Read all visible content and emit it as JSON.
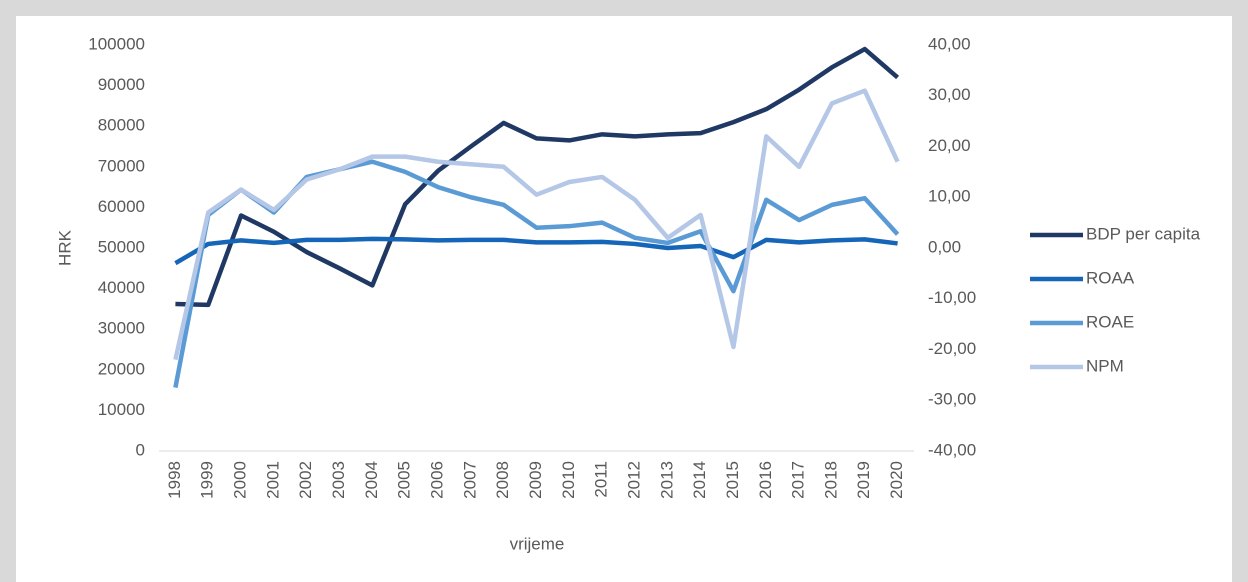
{
  "chart_data": {
    "type": "line",
    "categories": [
      "1998",
      "1999",
      "2000",
      "2001",
      "2002",
      "2003",
      "2004",
      "2005",
      "2006",
      "2007",
      "2008",
      "2009",
      "2010",
      "2011",
      "2012",
      "2013",
      "2014",
      "2015",
      "2016",
      "2017",
      "2018",
      "2019",
      "2020"
    ],
    "series": [
      {
        "name": "BDP per capita",
        "color": "#203864",
        "values": [
          36200,
          36000,
          58000,
          54000,
          49000,
          45000,
          40800,
          60800,
          69000,
          75000,
          80800,
          77000,
          76500,
          78000,
          77500,
          78000,
          78300,
          81000,
          84200,
          89000,
          94500,
          99000,
          92000
        ]
      },
      {
        "name": "ROAA",
        "color": "#1565b8",
        "axis": "y2",
        "values": [
          -3,
          0.8,
          1.5,
          1,
          1.6,
          1.6,
          1.8,
          1.7,
          1.5,
          1.6,
          1.6,
          1.1,
          1.1,
          1.2,
          0.8,
          0,
          0.4,
          -1.8,
          1.6,
          1.1,
          1.5,
          1.7,
          0.9
        ]
      },
      {
        "name": "ROAE",
        "color": "#5b9bd5",
        "axis": "y2",
        "values": [
          -27.5,
          6.5,
          11.5,
          7,
          14,
          15.5,
          17,
          15,
          12,
          10,
          8.5,
          4,
          4.3,
          5,
          2,
          1,
          3.3,
          -8.5,
          9.5,
          5.5,
          8.5,
          9.8,
          2.7
        ]
      },
      {
        "name": "NPM",
        "color": "#b4c7e7",
        "axis": "y2",
        "values": [
          -22,
          7,
          11.5,
          7.5,
          13.5,
          15.5,
          18,
          18,
          17,
          16.5,
          16,
          10.5,
          13,
          14,
          9.5,
          2,
          6.5,
          -19.5,
          22,
          16,
          28.5,
          31,
          17
        ]
      }
    ],
    "ylabel": "HRK",
    "xlabel": "vrijeme",
    "ylim": [
      0,
      100000
    ],
    "yticks": [
      0,
      10000,
      20000,
      30000,
      40000,
      50000,
      60000,
      70000,
      80000,
      90000,
      100000
    ],
    "y2lim": [
      -40,
      40
    ],
    "y2ticks": [
      {
        "value": -40,
        "label": "-40,00"
      },
      {
        "value": -30,
        "label": "-30,00"
      },
      {
        "value": -20,
        "label": "-20,00"
      },
      {
        "value": -10,
        "label": "-10,00"
      },
      {
        "value": 0,
        "label": "0,00"
      },
      {
        "value": 10,
        "label": "10,00"
      },
      {
        "value": 20,
        "label": "20,00"
      },
      {
        "value": 30,
        "label": "30,00"
      },
      {
        "value": 40,
        "label": "40,00"
      }
    ],
    "legend": "right"
  }
}
